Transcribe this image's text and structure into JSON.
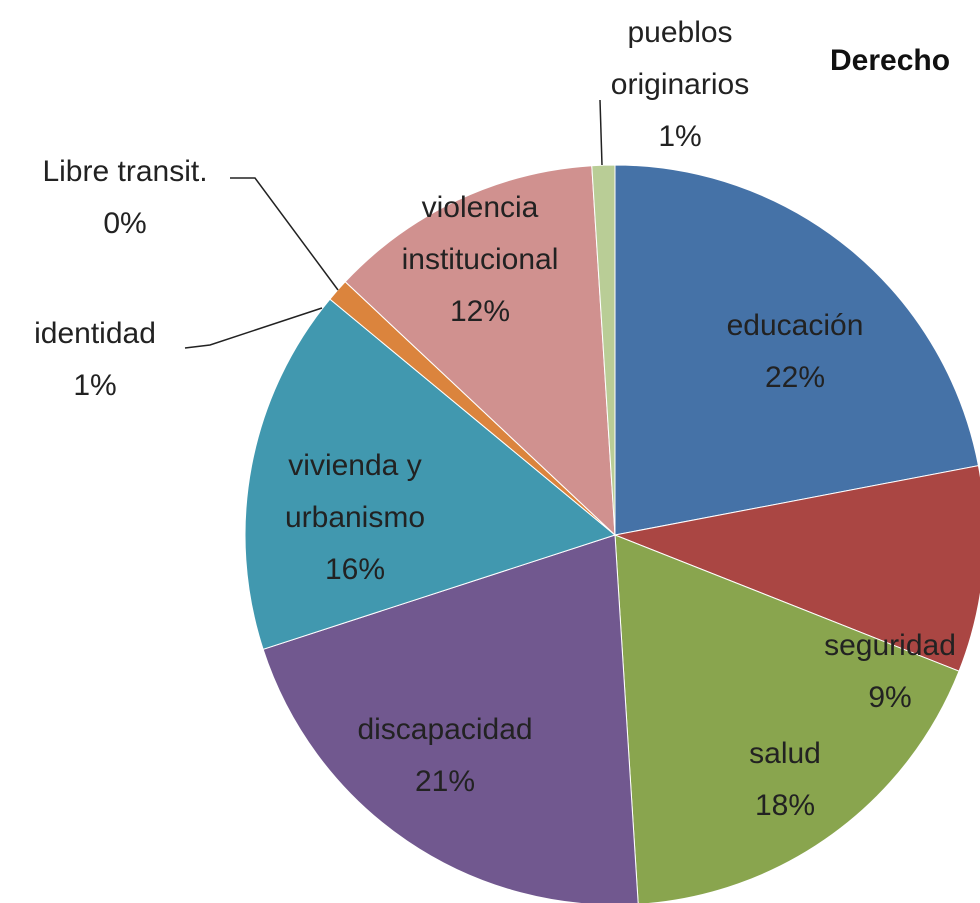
{
  "chart_data": {
    "type": "pie",
    "title": "Derecho",
    "categories": [
      "educación",
      "seguridad",
      "salud",
      "discapacidad",
      "vivienda y urbanismo",
      "identidad",
      "Libre transit.",
      "violencia institucional",
      "pueblos originarios"
    ],
    "values": [
      22,
      9,
      18,
      21,
      16,
      1,
      0,
      12,
      1
    ],
    "value_labels": [
      "22%",
      "9%",
      "18%",
      "21%",
      "16%",
      "1%",
      "0%",
      "12%",
      "1%"
    ],
    "colors": [
      "#4572a7",
      "#aa4643",
      "#89a54e",
      "#71588f",
      "#4198af",
      "#db843d",
      "#93a9cf",
      "#d0918f",
      "#b9cd96"
    ]
  }
}
